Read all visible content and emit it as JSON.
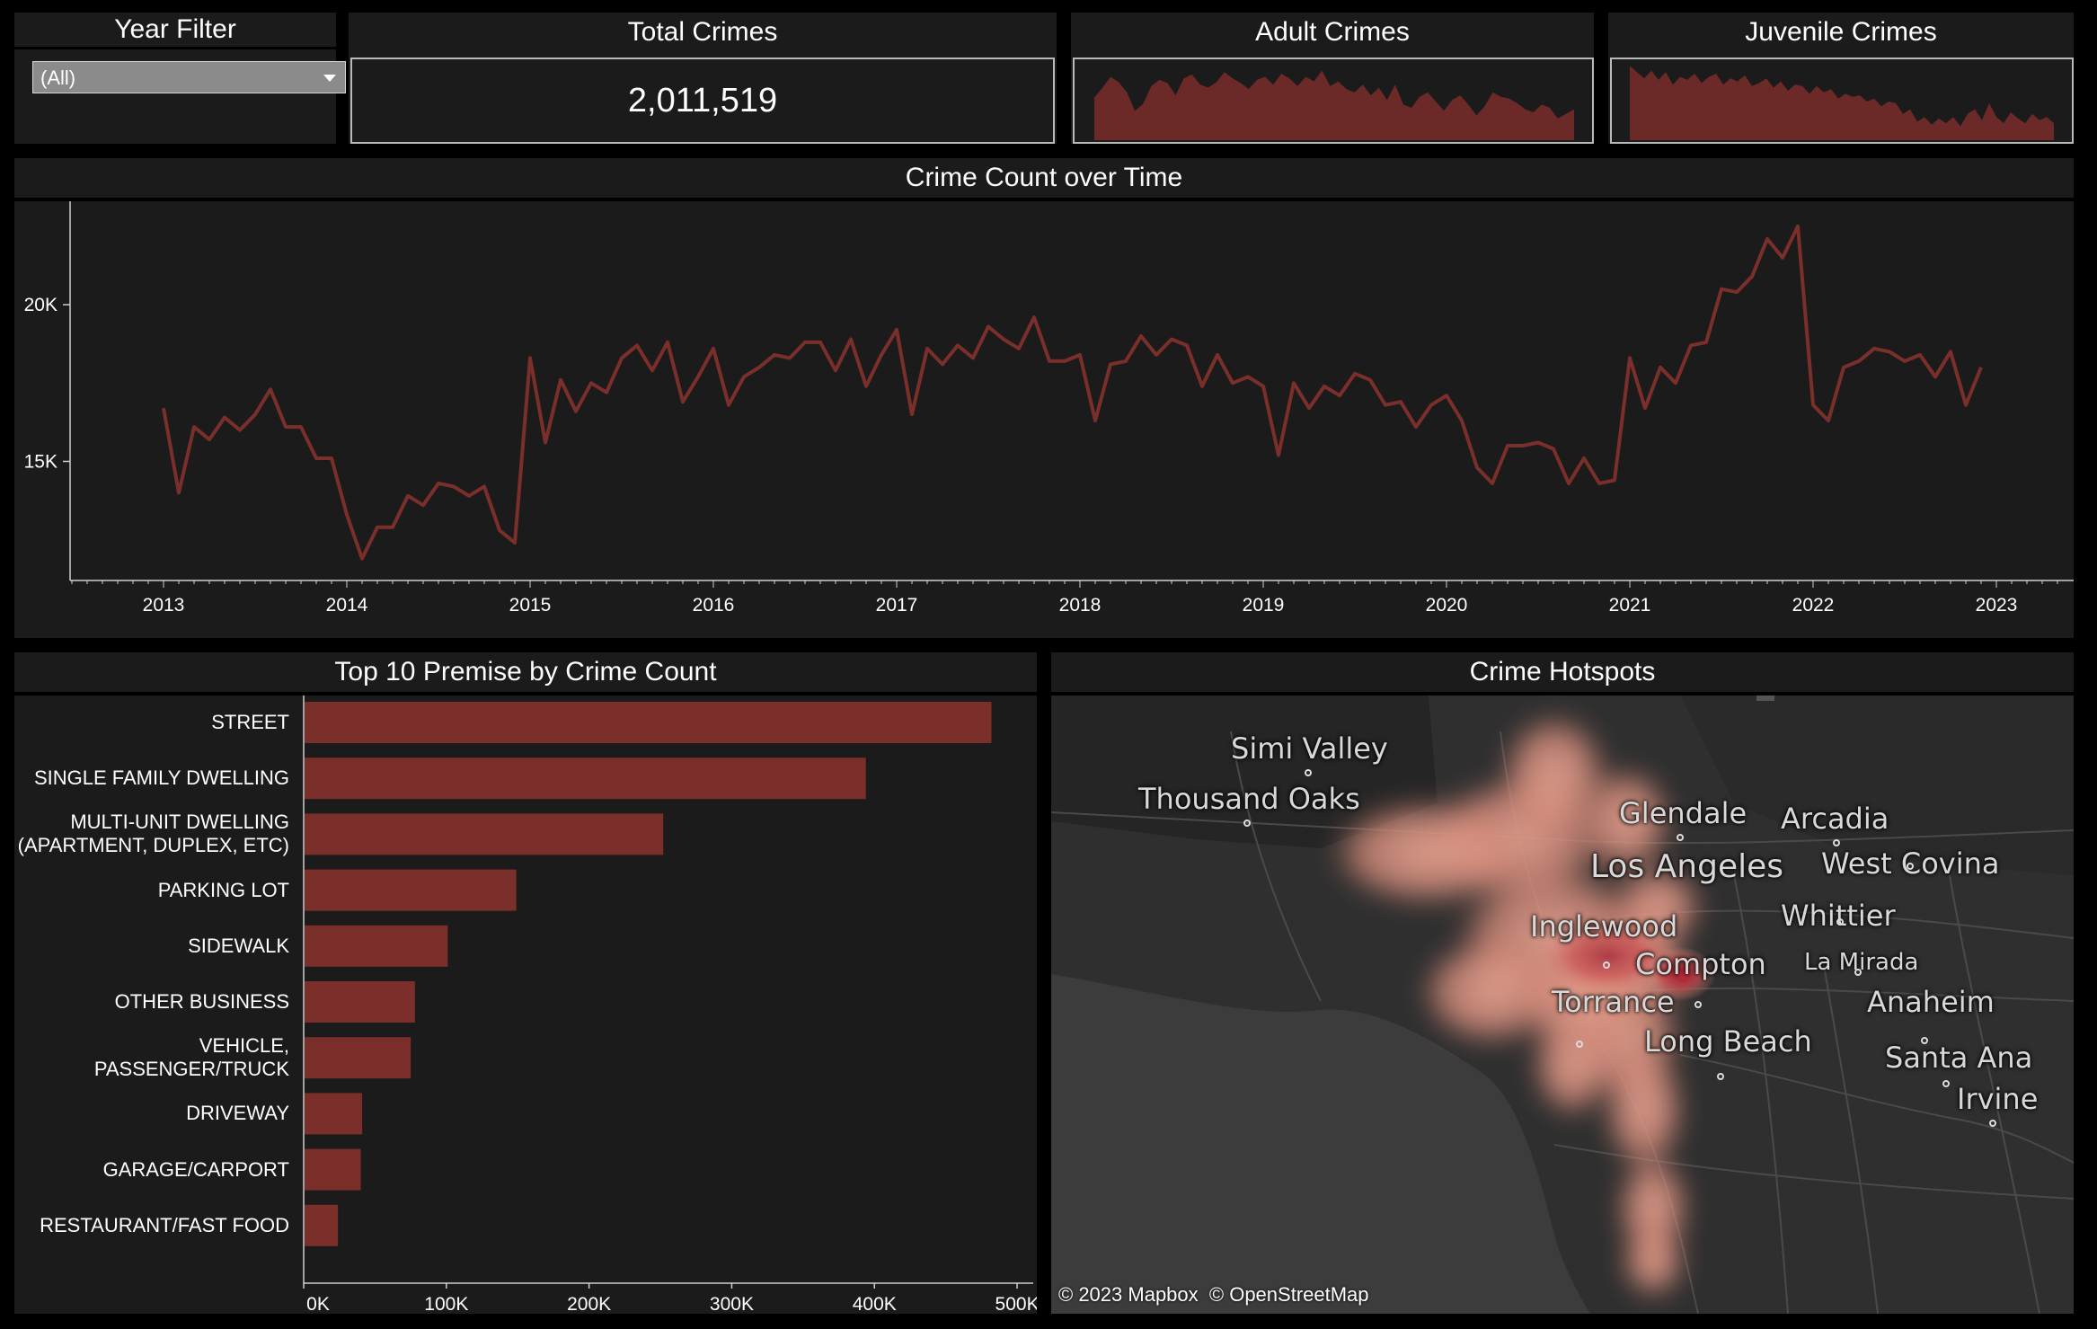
{
  "filter": {
    "title": "Year Filter",
    "selected": "(All)"
  },
  "kpis": {
    "total": {
      "title": "Total Crimes",
      "value": "2,011,519"
    },
    "adult": {
      "title": "Adult Crimes",
      "sparkline": [
        0.55,
        0.68,
        0.82,
        0.75,
        0.62,
        0.38,
        0.47,
        0.7,
        0.78,
        0.74,
        0.58,
        0.8,
        0.85,
        0.72,
        0.68,
        0.75,
        0.88,
        0.8,
        0.74,
        0.66,
        0.78,
        0.82,
        0.72,
        0.86,
        0.8,
        0.7,
        0.82,
        0.76,
        0.9,
        0.7,
        0.76,
        0.66,
        0.62,
        0.72,
        0.58,
        0.68,
        0.52,
        0.72,
        0.46,
        0.42,
        0.56,
        0.62,
        0.5,
        0.38,
        0.52,
        0.58,
        0.46,
        0.32,
        0.44,
        0.62,
        0.56,
        0.54,
        0.48,
        0.4,
        0.36,
        0.46,
        0.42,
        0.28,
        0.34,
        0.4
      ]
    },
    "juvenile": {
      "title": "Juvenile Crimes",
      "sparkline": [
        0.96,
        0.88,
        0.8,
        0.9,
        0.78,
        0.88,
        0.72,
        0.82,
        0.78,
        0.86,
        0.74,
        0.82,
        0.86,
        0.72,
        0.8,
        0.76,
        0.84,
        0.7,
        0.74,
        0.8,
        0.68,
        0.76,
        0.64,
        0.72,
        0.7,
        0.6,
        0.7,
        0.62,
        0.66,
        0.54,
        0.6,
        0.56,
        0.58,
        0.5,
        0.54,
        0.44,
        0.5,
        0.48,
        0.34,
        0.4,
        0.24,
        0.3,
        0.2,
        0.28,
        0.22,
        0.3,
        0.18,
        0.34,
        0.4,
        0.26,
        0.48,
        0.3,
        0.22,
        0.36,
        0.28,
        0.22,
        0.34,
        0.26,
        0.3,
        0.22
      ]
    }
  },
  "line": {
    "title": "Crime Count over Time",
    "chart_data": {
      "type": "line",
      "x_start": "2013-01",
      "y_ticks": [
        "15K",
        "20K"
      ],
      "y_tick_values": [
        15000,
        20000
      ],
      "x_ticks": [
        "2013",
        "2014",
        "2015",
        "2016",
        "2017",
        "2018",
        "2019",
        "2020",
        "2021",
        "2022",
        "2023"
      ],
      "ylim": [
        11200,
        23300
      ],
      "color": "#7b2f2b",
      "values": [
        16700,
        14000,
        16100,
        15700,
        16400,
        16000,
        16500,
        17300,
        16100,
        16100,
        15100,
        15100,
        13300,
        11900,
        12900,
        12900,
        13900,
        13600,
        14300,
        14200,
        13900,
        14200,
        12800,
        12400,
        18300,
        15600,
        17600,
        16600,
        17500,
        17200,
        18300,
        18700,
        17900,
        18800,
        16900,
        17700,
        18600,
        16800,
        17700,
        18000,
        18400,
        18300,
        18800,
        18800,
        17900,
        18900,
        17400,
        18400,
        19200,
        16500,
        18600,
        18100,
        18700,
        18300,
        19300,
        18900,
        18600,
        19600,
        18200,
        18200,
        18400,
        16300,
        18100,
        18200,
        19000,
        18400,
        18900,
        18700,
        17400,
        18400,
        17500,
        17700,
        17400,
        15200,
        17500,
        16700,
        17400,
        17100,
        17800,
        17600,
        16800,
        16900,
        16100,
        16800,
        17100,
        16300,
        14800,
        14300,
        15500,
        15500,
        15600,
        15400,
        14300,
        15100,
        14300,
        14400,
        18300,
        16700,
        18000,
        17500,
        18700,
        18800,
        20500,
        20400,
        20900,
        22100,
        21500,
        22500,
        16800,
        16300,
        18000,
        18200,
        18600,
        18500,
        18200,
        18400,
        17700,
        18500,
        16800,
        18000
      ]
    }
  },
  "bars": {
    "title": "Top 10 Premise by Crime Count",
    "chart_data": {
      "type": "bar",
      "categories": [
        "STREET",
        "SINGLE FAMILY DWELLING",
        "MULTI-UNIT DWELLING\n(APARTMENT, DUPLEX, ETC)",
        "PARKING LOT",
        "SIDEWALK",
        "OTHER BUSINESS",
        "VEHICLE,\nPASSENGER/TRUCK",
        "DRIVEWAY",
        "GARAGE/CARPORT",
        "RESTAURANT/FAST FOOD"
      ],
      "values": [
        482000,
        394000,
        252000,
        149000,
        101000,
        78000,
        75000,
        41000,
        40000,
        24000
      ],
      "x_ticks": [
        "0K",
        "100K",
        "200K",
        "300K",
        "400K",
        "500K"
      ],
      "x_tick_values": [
        0,
        100000,
        200000,
        300000,
        400000,
        500000
      ],
      "xlim": [
        0,
        505000
      ],
      "color": "#7b2f2b"
    }
  },
  "map": {
    "title": "Crime Hotspots",
    "attribution": [
      "© 2023 Mapbox",
      "© OpenStreetMap"
    ],
    "places": [
      {
        "name": "Simi Valley",
        "size": 32
      },
      {
        "name": "Thousand Oaks",
        "size": 32
      },
      {
        "name": "Glendale",
        "size": 32
      },
      {
        "name": "Arcadia",
        "size": 32
      },
      {
        "name": "Los Angeles",
        "size": 36
      },
      {
        "name": "West Covina",
        "size": 32
      },
      {
        "name": "Whittier",
        "size": 32
      },
      {
        "name": "Inglewood",
        "size": 32
      },
      {
        "name": "Compton",
        "size": 32
      },
      {
        "name": "La Mirada",
        "size": 26
      },
      {
        "name": "Torrance",
        "size": 32
      },
      {
        "name": "Anaheim",
        "size": 32
      },
      {
        "name": "Long Beach",
        "size": 32
      },
      {
        "name": "Santa Ana",
        "size": 32
      },
      {
        "name": "Irvine",
        "size": 32
      }
    ]
  }
}
